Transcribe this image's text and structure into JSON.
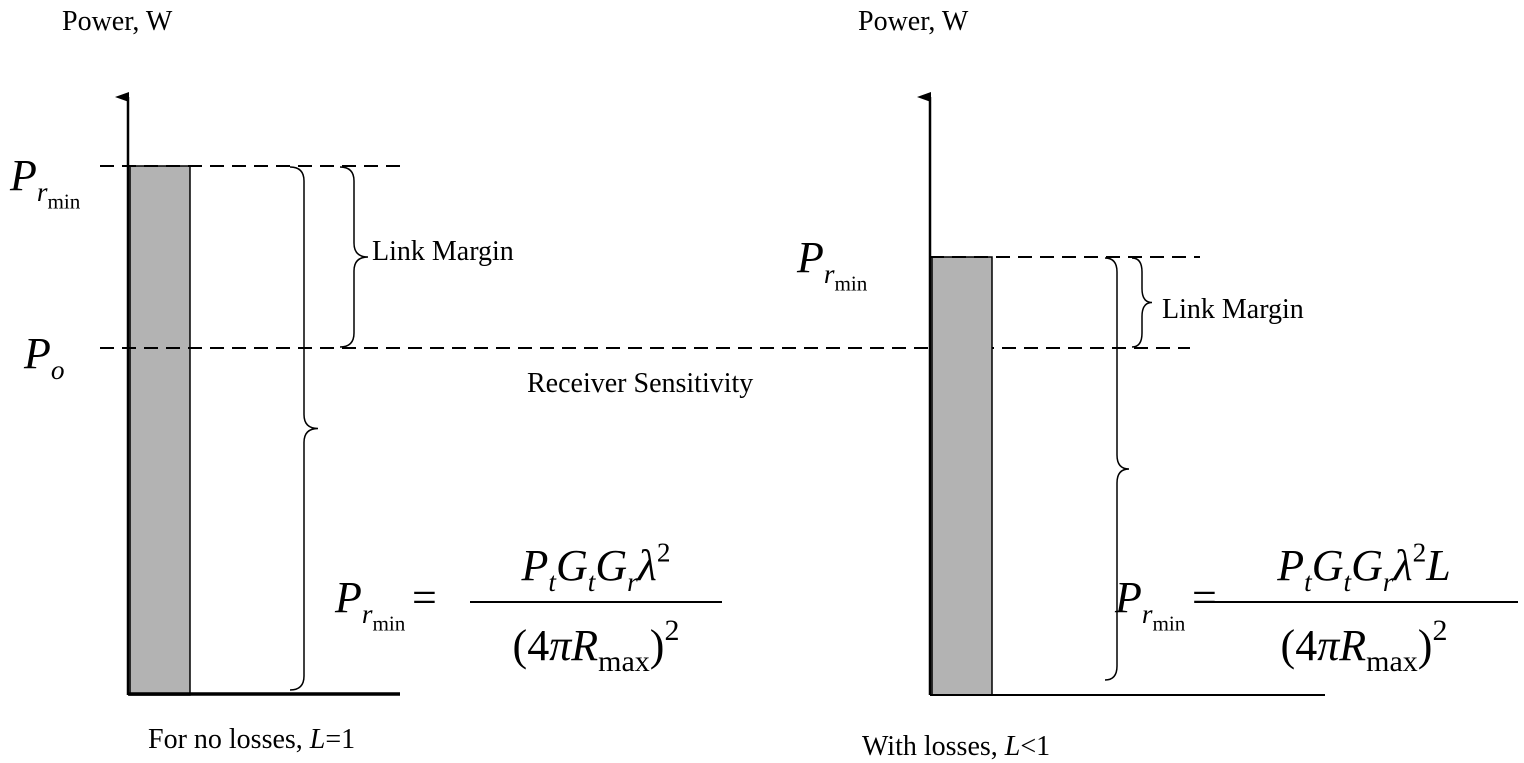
{
  "left": {
    "axis_label": "Power, W",
    "prmin_label": {
      "base": "P",
      "sub": "r",
      "subsub": "min"
    },
    "po_label": {
      "base": "P",
      "sub": "o"
    },
    "margin_label": "Link Margin",
    "sensitivity_label": "Receiver Sensitivity",
    "formula": {
      "lhs": {
        "base": "P",
        "sub": "r",
        "subsub": "min"
      },
      "equals": "=",
      "numerator": [
        {
          "base": "P",
          "sub": "t"
        },
        {
          "base": "G",
          "sub": "t"
        },
        {
          "base": "G",
          "sub": "r"
        },
        {
          "base": "λ",
          "sup": "2"
        }
      ],
      "denominator": {
        "open": "(4",
        "pi": "π",
        "base": "R",
        "sub": "max",
        "close": ")",
        "sup": "2"
      }
    },
    "caption": {
      "text": "For no losses, ",
      "var": "L",
      "rest": "=1"
    }
  },
  "right": {
    "axis_label": "Power, W",
    "prmin_label": {
      "base": "P",
      "sub": "r",
      "subsub": "min"
    },
    "margin_label": "Link Margin",
    "formula": {
      "lhs": {
        "base": "P",
        "sub": "r",
        "subsub": "min"
      },
      "equals": "=",
      "numerator": [
        {
          "base": "P",
          "sub": "t"
        },
        {
          "base": "G",
          "sub": "t"
        },
        {
          "base": "G",
          "sub": "r"
        },
        {
          "base": "λ",
          "sup": "2"
        },
        {
          "base": "L"
        }
      ],
      "denominator": {
        "open": "(4",
        "pi": "π",
        "base": "R",
        "sub": "max",
        "close": ")",
        "sup": "2"
      }
    },
    "caption": {
      "text": "With losses, ",
      "var": "L",
      "rest": "<1"
    }
  }
}
